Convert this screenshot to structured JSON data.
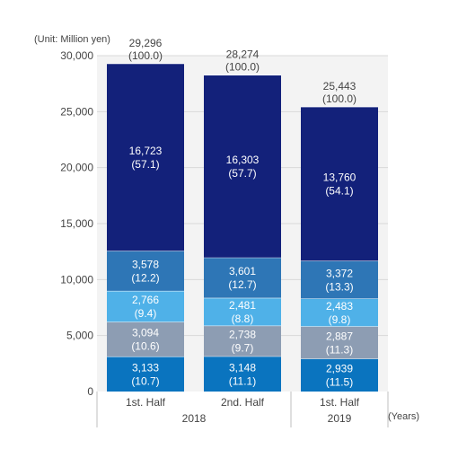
{
  "unit_label": "(Unit: Million yen)",
  "years_label": "(Years)",
  "colors": {
    "background": "#f3f3f3",
    "grid": "#d9d9d9",
    "text": "#444444",
    "series": [
      "#0a74bf",
      "#8d9db3",
      "#4fb1e8",
      "#2e76b6",
      "#13217a"
    ]
  },
  "chart_data": {
    "type": "bar",
    "stacked": true,
    "categories": [
      "1st. Half",
      "2nd. Half",
      "1st. Half"
    ],
    "groups": [
      {
        "label": "2018",
        "categories": [
          0,
          1
        ]
      },
      {
        "label": "2019",
        "categories": [
          2
        ]
      }
    ],
    "ylim": [
      0,
      30000
    ],
    "yticks": [
      0,
      5000,
      10000,
      15000,
      20000,
      25000,
      30000
    ],
    "ytick_labels": [
      "0",
      "5,000",
      "10,000",
      "15,000",
      "20,000",
      "25,000",
      "30,000"
    ],
    "grid": true,
    "series": [
      {
        "values": [
          3133,
          3148,
          2939
        ],
        "labels": [
          "3,133",
          "3,148",
          "2,939"
        ],
        "pct_labels": [
          "(10.7)",
          "(11.1)",
          "(11.5)"
        ]
      },
      {
        "values": [
          3094,
          2738,
          2887
        ],
        "labels": [
          "3,094",
          "2,738",
          "2,887"
        ],
        "pct_labels": [
          "(10.6)",
          "(9.7)",
          "(11.3)"
        ]
      },
      {
        "values": [
          2766,
          2481,
          2483
        ],
        "labels": [
          "2,766",
          "2,481",
          "2,483"
        ],
        "pct_labels": [
          "(9.4)",
          "(8.8)",
          "(9.8)"
        ]
      },
      {
        "values": [
          3578,
          3601,
          3372
        ],
        "labels": [
          "3,578",
          "3,601",
          "3,372"
        ],
        "pct_labels": [
          "(12.2)",
          "(12.7)",
          "(13.3)"
        ]
      },
      {
        "values": [
          16723,
          16303,
          13760
        ],
        "labels": [
          "16,723",
          "16,303",
          "13,760"
        ],
        "pct_labels": [
          "(57.1)",
          "(57.7)",
          "(54.1)"
        ]
      }
    ],
    "totals": [
      29296,
      28274,
      25443
    ],
    "total_labels": [
      "29,296",
      "28,274",
      "25,443"
    ],
    "total_pct_labels": [
      "(100.0)",
      "(100.0)",
      "(100.0)"
    ]
  }
}
